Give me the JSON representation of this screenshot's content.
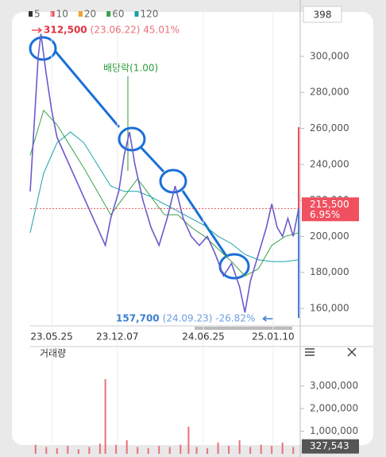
{
  "chart_data": {
    "type": "line",
    "legend": [
      {
        "name": "5",
        "color": "#333333"
      },
      {
        "name": "10",
        "color": "#e8505b"
      },
      {
        "name": "20",
        "color": "#f0a030"
      },
      {
        "name": "60",
        "color": "#3aa04a"
      },
      {
        "name": "120",
        "color": "#1aa0a8"
      }
    ],
    "badge": "398",
    "xlim": [
      0,
      100
    ],
    "xticks": [
      {
        "value": 8,
        "label": "23.05.25"
      },
      {
        "value": 32.5,
        "label": "23.12.07"
      },
      {
        "value": 64.5,
        "label": "24.06.25"
      },
      {
        "value": 90.5,
        "label": "25.01.10"
      }
    ],
    "ylim": [
      150300,
      324700
    ],
    "yticks": [
      {
        "value": 160000,
        "label": "160,000"
      },
      {
        "value": 180000,
        "label": "180,000"
      },
      {
        "value": 200000,
        "label": "200,000"
      },
      {
        "value": 220000,
        "label": "220,000"
      },
      {
        "value": 240000,
        "label": "240,000"
      },
      {
        "value": 260000,
        "label": "260,000"
      },
      {
        "value": 280000,
        "label": "280,000"
      },
      {
        "value": 300000,
        "label": "300,000"
      }
    ],
    "grid": true,
    "price": {
      "color": "#6a5acd",
      "x": [
        0,
        3,
        4,
        6,
        8,
        10,
        13,
        16,
        19,
        22,
        25,
        28,
        30,
        33,
        35,
        37,
        39,
        42,
        45,
        48,
        51,
        54,
        57,
        60,
        63,
        66,
        69,
        72,
        75,
        78,
        80,
        82,
        85,
        88,
        90,
        92,
        94,
        96,
        98,
        100
      ],
      "values": [
        225000,
        300000,
        312500,
        290000,
        270000,
        255000,
        245000,
        235000,
        225000,
        215000,
        205000,
        195000,
        210000,
        225000,
        245000,
        258000,
        240000,
        220000,
        205000,
        195000,
        210000,
        228000,
        210000,
        200000,
        195000,
        200000,
        190000,
        178000,
        185000,
        172000,
        157700,
        175000,
        190000,
        205000,
        218000,
        205000,
        200000,
        210000,
        200000,
        215500
      ]
    },
    "ma_lines": [
      {
        "name": "60",
        "color": "#3aa04a",
        "x": [
          0,
          5,
          10,
          15,
          20,
          25,
          30,
          35,
          40,
          45,
          50,
          55,
          60,
          65,
          70,
          75,
          80,
          85,
          90,
          95,
          100
        ],
        "values": [
          245000,
          270000,
          262000,
          250000,
          238000,
          225000,
          212000,
          222000,
          232000,
          222000,
          212000,
          212000,
          205000,
          200000,
          193000,
          186000,
          178000,
          182000,
          195000,
          200000,
          202000
        ]
      },
      {
        "name": "120",
        "color": "#1aa0a8",
        "x": [
          0,
          5,
          10,
          15,
          20,
          25,
          30,
          35,
          40,
          45,
          50,
          55,
          60,
          65,
          70,
          75,
          80,
          85,
          90,
          95,
          100
        ],
        "values": [
          202000,
          235000,
          252000,
          258000,
          252000,
          240000,
          228000,
          225000,
          225000,
          222000,
          218000,
          214000,
          210000,
          206000,
          200000,
          196000,
          190000,
          187000,
          186000,
          186000,
          187000
        ]
      }
    ],
    "max_marker": {
      "value": 312500,
      "label": "312,500",
      "detail": "(23.06.22) 45.01%"
    },
    "min_marker": {
      "value": 157700,
      "label": "157,700",
      "detail": "(24.09.23) -26.82%"
    },
    "event": "배당락(1.00)",
    "current": {
      "value": 215500,
      "label": "215,500",
      "change": "6.95%"
    },
    "volume": {
      "title": "거래량",
      "color": "#e8707a",
      "ylim": [
        0,
        4600000
      ],
      "yticks": [
        {
          "value": 1000000,
          "label": "1,000,000"
        },
        {
          "value": 2000000,
          "label": "2,000,000"
        },
        {
          "value": 3000000,
          "label": "3,000,000"
        }
      ],
      "x": [
        2,
        6,
        10,
        14,
        18,
        22,
        26,
        28,
        32,
        36,
        40,
        44,
        48,
        52,
        56,
        59,
        62,
        66,
        70,
        74,
        78,
        82,
        86,
        90,
        94,
        98
      ],
      "values": [
        400000,
        300000,
        250000,
        350000,
        200000,
        300000,
        450000,
        3300000,
        400000,
        600000,
        300000,
        250000,
        350000,
        300000,
        400000,
        1200000,
        300000,
        250000,
        500000,
        350000,
        600000,
        300000,
        400000,
        350000,
        500000,
        300000
      ],
      "current": {
        "value": 327543,
        "label": "327,543"
      }
    }
  }
}
